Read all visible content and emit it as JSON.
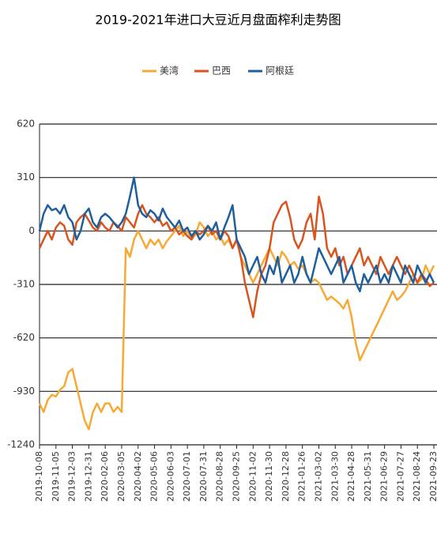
{
  "chart_data": {
    "type": "line",
    "title": "2019-2021年进口大豆近月盘面榨利走势图",
    "categories": [
      "2019-10-08",
      null,
      null,
      null,
      "2019-11-05",
      null,
      null,
      null,
      "2019-12-03",
      null,
      null,
      null,
      "2019-12-31",
      null,
      null,
      null,
      "2020-02-06",
      null,
      null,
      null,
      "2020-03-05",
      null,
      null,
      null,
      "2020-04-02",
      null,
      null,
      null,
      "2020-05-06",
      null,
      null,
      null,
      "2020-06-03",
      null,
      null,
      null,
      "2020-07-01",
      null,
      null,
      null,
      "2020-07-31",
      null,
      null,
      null,
      "2020-08-28",
      null,
      null,
      null,
      "2020-09-25",
      null,
      null,
      null,
      "2020-11-02",
      null,
      null,
      null,
      "2020-11-30",
      null,
      null,
      null,
      "2020-12-28",
      null,
      null,
      null,
      "2021-01-26",
      null,
      null,
      null,
      "2021-03-02",
      null,
      null,
      null,
      "2021-03-30",
      null,
      null,
      null,
      "2021-04-28",
      null,
      null,
      null,
      "2021-05-31",
      null,
      null,
      null,
      "2021-06-29",
      null,
      null,
      null,
      "2021-07-27",
      null,
      null,
      null,
      "2021-08-24",
      null,
      null,
      null,
      "2021-09-23"
    ],
    "series": [
      {
        "name": "美湾",
        "color": "#f7a935",
        "values": [
          -1000,
          -1050,
          -980,
          -950,
          -960,
          -920,
          -900,
          -820,
          -800,
          -900,
          -1000,
          -1100,
          -1150,
          -1050,
          -1000,
          -1050,
          -1000,
          -1000,
          -1050,
          -1020,
          -1050,
          -100,
          -150,
          -50,
          0,
          -50,
          -100,
          -50,
          -80,
          -50,
          -100,
          -60,
          -30,
          0,
          30,
          -30,
          0,
          -50,
          -20,
          50,
          20,
          -30,
          0,
          -50,
          -30,
          -80,
          -50,
          -100,
          -50,
          -150,
          -200,
          -250,
          -300,
          -250,
          -200,
          -150,
          -100,
          -150,
          -200,
          -120,
          -150,
          -200,
          -180,
          -220,
          -200,
          -250,
          -300,
          -280,
          -300,
          -350,
          -400,
          -380,
          -400,
          -420,
          -450,
          -400,
          -500,
          -650,
          -750,
          -700,
          -650,
          -600,
          -550,
          -500,
          -450,
          -400,
          -350,
          -400,
          -380,
          -350,
          -300,
          -250,
          -300,
          -280,
          -200,
          -250,
          -200
        ]
      },
      {
        "name": "巴西",
        "color": "#d9541e",
        "values": [
          -100,
          -50,
          0,
          -50,
          20,
          50,
          30,
          -50,
          -80,
          50,
          80,
          100,
          60,
          20,
          0,
          50,
          20,
          0,
          50,
          30,
          0,
          80,
          50,
          20,
          100,
          150,
          100,
          80,
          50,
          80,
          30,
          50,
          0,
          20,
          -20,
          0,
          -30,
          -50,
          0,
          -20,
          0,
          30,
          -20,
          0,
          -50,
          0,
          -30,
          -100,
          -50,
          -150,
          -300,
          -400,
          -500,
          -350,
          -250,
          -200,
          -100,
          50,
          100,
          150,
          170,
          80,
          -50,
          -100,
          -50,
          50,
          100,
          -50,
          200,
          100,
          -100,
          -150,
          -100,
          -200,
          -150,
          -250,
          -200,
          -150,
          -100,
          -200,
          -150,
          -200,
          -250,
          -150,
          -200,
          -250,
          -200,
          -150,
          -200,
          -250,
          -200,
          -250,
          -300,
          -250,
          -280,
          -320,
          -300
        ]
      },
      {
        "name": "阿根廷",
        "color": "#1f5f9b",
        "values": [
          0,
          100,
          150,
          120,
          130,
          100,
          150,
          80,
          50,
          -50,
          0,
          100,
          130,
          50,
          20,
          80,
          100,
          80,
          50,
          20,
          50,
          100,
          200,
          310,
          150,
          100,
          80,
          120,
          100,
          60,
          130,
          80,
          50,
          20,
          60,
          0,
          20,
          -30,
          0,
          -50,
          -20,
          30,
          0,
          50,
          -50,
          20,
          80,
          150,
          -50,
          -100,
          -150,
          -250,
          -200,
          -150,
          -250,
          -300,
          -200,
          -250,
          -150,
          -300,
          -250,
          -200,
          -300,
          -250,
          -150,
          -250,
          -300,
          -200,
          -100,
          -150,
          -200,
          -250,
          -200,
          -150,
          -300,
          -250,
          -200,
          -300,
          -350,
          -250,
          -300,
          -250,
          -200,
          -300,
          -250,
          -300,
          -200,
          -250,
          -300,
          -200,
          -250,
          -300,
          -200,
          -250,
          -300,
          -250,
          -300
        ]
      }
    ],
    "ylim": [
      -1240,
      620
    ],
    "yticks": [
      620,
      310,
      0,
      -310,
      -620,
      -930,
      -1240
    ],
    "grid": true
  }
}
